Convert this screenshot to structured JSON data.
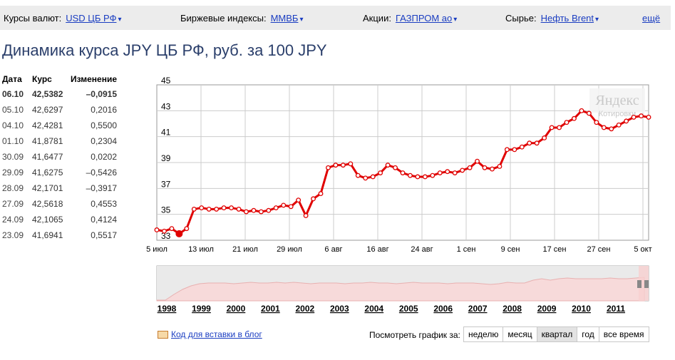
{
  "topbar": {
    "currency_label": "Курсы валют:",
    "currency_value": "USD ЦБ РФ",
    "index_label": "Биржевые индексы:",
    "index_value": "ММВБ",
    "stock_label": "Акции:",
    "stock_value": "ГАЗПРОМ ао",
    "commodity_label": "Сырье:",
    "commodity_value": "Нефть Brent",
    "more": "ещё",
    "arrow": "▾"
  },
  "title": "Динамика курса JPY ЦБ РФ, руб. за 100 JPY",
  "table": {
    "headers": [
      "Дата",
      "Курс",
      "Изменение"
    ],
    "rows": [
      [
        "06.10",
        "42,5382",
        "–0,0915"
      ],
      [
        "05.10",
        "42,6297",
        "0,2016"
      ],
      [
        "04.10",
        "42,4281",
        "0,5500"
      ],
      [
        "01.10",
        "41,8781",
        "0,2304"
      ],
      [
        "30.09",
        "41,6477",
        "0,0202"
      ],
      [
        "29.09",
        "41,6275",
        "–0,5426"
      ],
      [
        "28.09",
        "42,1701",
        "–0,3917"
      ],
      [
        "27.09",
        "42,5618",
        "0,4553"
      ],
      [
        "24.09",
        "42,1065",
        "0,4124"
      ],
      [
        "23.09",
        "41,6941",
        "0,5517"
      ]
    ]
  },
  "chart_data": {
    "type": "line",
    "y_ticks": [
      "33",
      "35",
      "37",
      "39",
      "41",
      "43",
      "45"
    ],
    "ylim": [
      33,
      45
    ],
    "x_ticks": [
      "5 июл",
      "13 июл",
      "21 июл",
      "29 июл",
      "6 авг",
      "16 авг",
      "24 авг",
      "1 сен",
      "9 сен",
      "17 сен",
      "27 сен",
      "5 окт"
    ],
    "series": [
      {
        "color": "#e00000",
        "values": [
          33.8,
          33.7,
          33.9,
          33.5,
          33.9,
          35.4,
          35.5,
          35.4,
          35.4,
          35.5,
          35.5,
          35.4,
          35.2,
          35.3,
          35.2,
          35.3,
          35.5,
          35.7,
          35.6,
          36.1,
          34.9,
          36.2,
          36.6,
          38.6,
          38.8,
          38.8,
          38.9,
          38.0,
          37.8,
          37.9,
          38.2,
          38.8,
          38.6,
          38.2,
          38.0,
          37.9,
          37.9,
          38.0,
          38.2,
          38.3,
          38.2,
          38.4,
          38.6,
          39.1,
          38.6,
          38.5,
          38.7,
          40.0,
          40.0,
          40.2,
          40.5,
          40.5,
          40.9,
          41.7,
          41.7,
          42.1,
          42.4,
          43.0,
          42.8,
          42.1,
          41.7,
          41.6,
          41.9,
          42.2,
          42.5,
          42.6,
          42.5
        ],
        "marker_index": 3
      }
    ],
    "overview_years": [
      "1998",
      "1999",
      "2000",
      "2001",
      "2002",
      "2003",
      "2004",
      "2005",
      "2006",
      "2007",
      "2008",
      "2009",
      "2010",
      "2011"
    ],
    "watermark": "Яндекс",
    "watermark_sub": "Котировки"
  },
  "bottom": {
    "blog_link": "Код для вставки в блог",
    "period_label": "Посмотреть график за:",
    "periods": [
      "неделю",
      "месяц",
      "квартал",
      "год",
      "все время"
    ],
    "active_period": "квартал"
  }
}
